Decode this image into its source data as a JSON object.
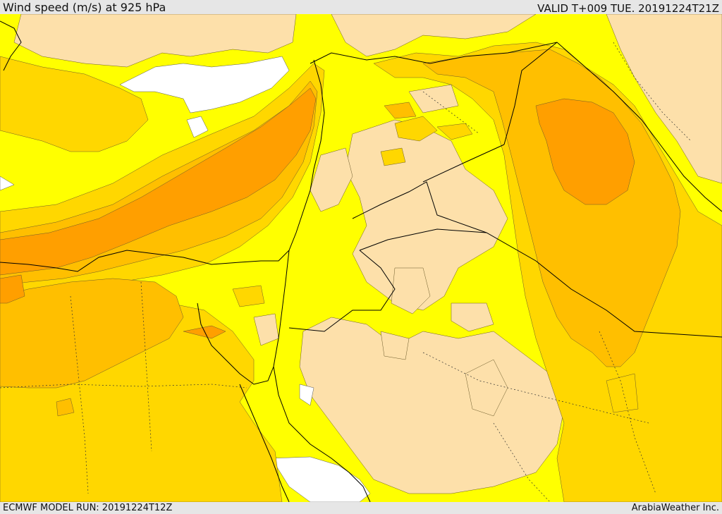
{
  "header": {
    "title": "Wind speed (m/s) at 925 hPa",
    "valid": "VALID T+009 TUE. 20191224T21Z"
  },
  "footer": {
    "model_run": "ECMWF MODEL RUN: 20191224T12Z",
    "credit": "ArabiaWeather Inc."
  },
  "palette": {
    "calm": "#ffffff",
    "light": "#fde0aa",
    "moderate": "#ffff00",
    "fresh": "#ffd700",
    "strong": "#ffbf00",
    "very_strong": "#ff9f00",
    "boundary": "#000000"
  }
}
